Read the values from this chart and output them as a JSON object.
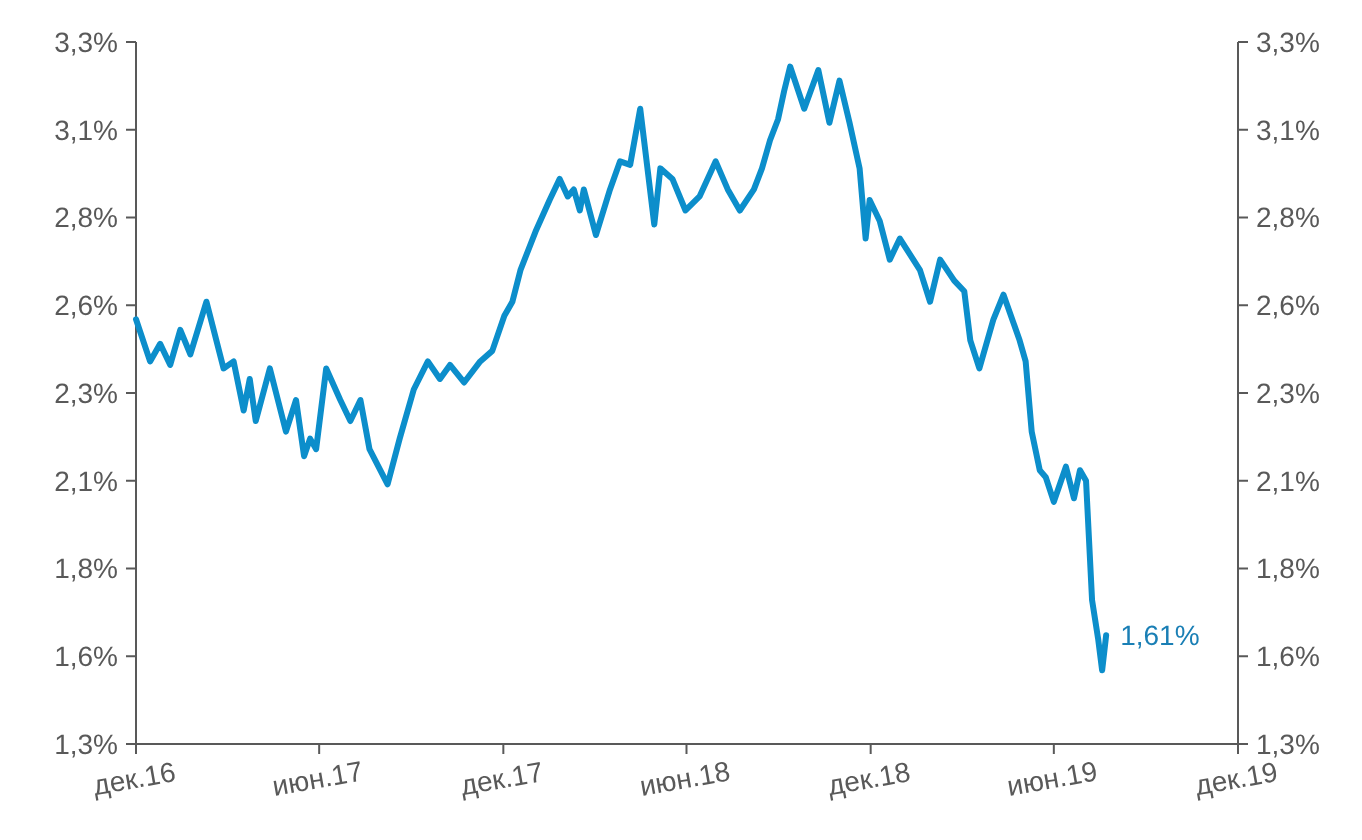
{
  "chart_data": {
    "type": "line",
    "x": [
      "2016-12-01",
      "2016-12-15",
      "2016-12-25",
      "2017-01-04",
      "2017-01-14",
      "2017-01-24",
      "2017-02-09",
      "2017-02-26",
      "2017-03-08",
      "2017-03-18",
      "2017-03-24",
      "2017-03-30",
      "2017-04-13",
      "2017-04-29",
      "2017-05-09",
      "2017-05-17",
      "2017-05-23",
      "2017-05-29",
      "2017-06-08",
      "2017-06-22",
      "2017-07-02",
      "2017-07-12",
      "2017-07-21",
      "2017-08-08",
      "2017-08-20",
      "2017-09-03",
      "2017-09-17",
      "2017-09-29",
      "2017-10-09",
      "2017-10-23",
      "2017-11-08",
      "2017-11-20",
      "2017-12-02",
      "2017-12-10",
      "2017-12-18",
      "2018-01-02",
      "2018-01-16",
      "2018-01-26",
      "2018-02-03",
      "2018-02-09",
      "2018-02-15",
      "2018-02-19",
      "2018-03-03",
      "2018-03-17",
      "2018-03-27",
      "2018-04-06",
      "2018-04-16",
      "2018-04-30",
      "2018-05-06",
      "2018-05-18",
      "2018-05-31",
      "2018-06-14",
      "2018-06-30",
      "2018-07-12",
      "2018-07-24",
      "2018-08-07",
      "2018-08-15",
      "2018-08-23",
      "2018-08-31",
      "2018-09-06",
      "2018-09-12",
      "2018-09-26",
      "2018-10-10",
      "2018-10-21",
      "2018-10-31",
      "2018-11-10",
      "2018-11-20",
      "2018-11-26",
      "2018-11-30",
      "2018-12-10",
      "2018-12-20",
      "2018-12-30",
      "2019-01-19",
      "2019-01-29",
      "2019-02-08",
      "2019-02-22",
      "2019-03-04",
      "2019-03-10",
      "2019-03-19",
      "2019-04-02",
      "2019-04-12",
      "2019-04-28",
      "2019-05-04",
      "2019-05-10",
      "2019-05-18",
      "2019-05-24",
      "2019-06-01",
      "2019-06-13",
      "2019-06-21",
      "2019-06-27",
      "2019-07-03",
      "2019-07-09",
      "2019-07-15",
      "2019-07-19",
      "2019-07-23"
    ],
    "series": [
      {
        "color": "#0c8ecb",
        "values": [
          2.51,
          2.39,
          2.44,
          2.38,
          2.48,
          2.41,
          2.56,
          2.37,
          2.39,
          2.25,
          2.34,
          2.22,
          2.37,
          2.19,
          2.28,
          2.12,
          2.17,
          2.14,
          2.37,
          2.28,
          2.22,
          2.28,
          2.14,
          2.04,
          2.17,
          2.31,
          2.39,
          2.34,
          2.38,
          2.33,
          2.39,
          2.42,
          2.52,
          2.56,
          2.65,
          2.76,
          2.85,
          2.91,
          2.86,
          2.88,
          2.82,
          2.88,
          2.75,
          2.88,
          2.96,
          2.95,
          3.11,
          2.78,
          2.94,
          2.91,
          2.82,
          2.86,
          2.96,
          2.88,
          2.82,
          2.88,
          2.94,
          3.02,
          3.08,
          3.16,
          3.23,
          3.11,
          3.22,
          3.07,
          3.19,
          3.07,
          2.94,
          2.74,
          2.85,
          2.79,
          2.68,
          2.74,
          2.65,
          2.56,
          2.68,
          2.62,
          2.59,
          2.45,
          2.37,
          2.51,
          2.58,
          2.45,
          2.39,
          2.19,
          2.08,
          2.06,
          1.99,
          2.09,
          2.0,
          2.08,
          2.05,
          1.71,
          1.6,
          1.51,
          1.61
        ]
      }
    ],
    "annotations": [
      {
        "text": "1,61%",
        "x": "2019-07-23",
        "y": 1.61
      }
    ],
    "xlim": [
      "2016-12-01",
      "2019-12-01"
    ],
    "xticks": [
      {
        "value": "2016-12-01",
        "label": "дек.16"
      },
      {
        "value": "2017-06-01",
        "label": "июн.17"
      },
      {
        "value": "2017-12-01",
        "label": "дек.17"
      },
      {
        "value": "2018-06-01",
        "label": "июн.18"
      },
      {
        "value": "2018-12-01",
        "label": "дек.18"
      },
      {
        "value": "2019-06-01",
        "label": "июн.19"
      },
      {
        "value": "2019-12-01",
        "label": "дек.19"
      }
    ],
    "ylim": [
      1.3,
      3.3
    ],
    "yticks": [
      {
        "value": 1.3,
        "label": "1,3%"
      },
      {
        "value": 1.55,
        "label": "1,6%"
      },
      {
        "value": 1.8,
        "label": "1,8%"
      },
      {
        "value": 2.05,
        "label": "2,1%"
      },
      {
        "value": 2.3,
        "label": "2,3%"
      },
      {
        "value": 2.55,
        "label": "2,6%"
      },
      {
        "value": 2.8,
        "label": "2,8%"
      },
      {
        "value": 3.05,
        "label": "3,1%"
      },
      {
        "value": 3.3,
        "label": "3,3%"
      }
    ],
    "y2lim": [
      1.3,
      3.3
    ],
    "y2ticks": [
      {
        "value": 1.3,
        "label": "1,3%"
      },
      {
        "value": 1.55,
        "label": "1,6%"
      },
      {
        "value": 1.8,
        "label": "1,8%"
      },
      {
        "value": 2.05,
        "label": "2,1%"
      },
      {
        "value": 2.3,
        "label": "2,3%"
      },
      {
        "value": 2.55,
        "label": "2,6%"
      },
      {
        "value": 2.8,
        "label": "2,8%"
      },
      {
        "value": 3.05,
        "label": "3,1%"
      },
      {
        "value": 3.3,
        "label": "3,3%"
      }
    ],
    "grid": false,
    "marker": "none",
    "line_style": "solid"
  }
}
